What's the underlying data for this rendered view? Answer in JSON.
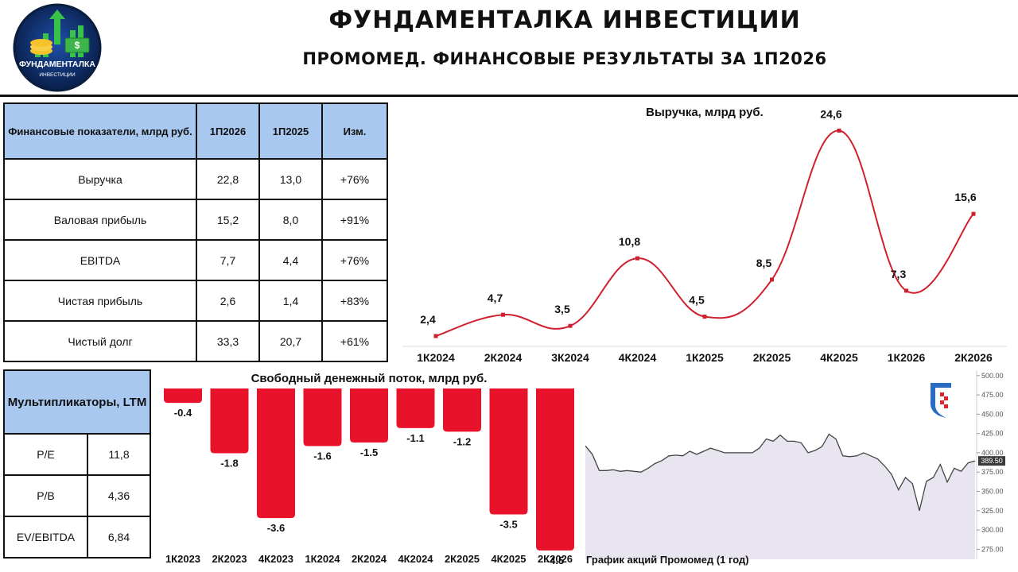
{
  "header": {
    "title": "ФУНДАМЕНТАЛКА ИНВЕСТИЦИИ",
    "subtitle": "ПРОМОМЕД. ФИНАНСОВЫЕ РЕЗУЛЬТАТЫ ЗА 1П2026",
    "logo_line1": "ФУНДАМЕНТАЛКА",
    "logo_line2": "ИНВЕСТИЦИИ"
  },
  "fin_table": {
    "headers": [
      "Финансовые показатели, млрд руб.",
      "1П2026",
      "1П2025",
      "Изм."
    ],
    "rows": [
      [
        "Выручка",
        "22,8",
        "13,0",
        "+76%"
      ],
      [
        "Валовая прибыль",
        "15,2",
        "8,0",
        "+91%"
      ],
      [
        "EBITDA",
        "7,7",
        "4,4",
        "+76%"
      ],
      [
        "Чистая прибыль",
        "2,6",
        "1,4",
        "+83%"
      ],
      [
        "Чистый долг",
        "33,3",
        "20,7",
        "+61%"
      ]
    ]
  },
  "mult_table": {
    "header": "Мультипликаторы, LTM",
    "rows": [
      [
        "P/E",
        "11,8"
      ],
      [
        "P/B",
        "4,36"
      ],
      [
        "EV/EBITDA",
        "6,84"
      ]
    ]
  },
  "chart_data": [
    {
      "type": "line",
      "title": "Выручка, млрд руб.",
      "categories": [
        "1К2024",
        "2К2024",
        "3К2024",
        "4К2024",
        "1К2025",
        "2К2025",
        "4К2025",
        "1К2026",
        "2К2026"
      ],
      "values": [
        2.4,
        4.7,
        3.5,
        10.8,
        4.5,
        8.5,
        24.6,
        7.3,
        15.6
      ],
      "labels": [
        "2,4",
        "4,7",
        "3,5",
        "10,8",
        "4,5",
        "8,5",
        "24,6",
        "7,3",
        "15,6"
      ],
      "color": "#d0202e",
      "grid": false
    },
    {
      "type": "bar",
      "title": "Свободный денежный поток, млрд руб.",
      "categories": [
        "1К2023",
        "2К2023",
        "4К2023",
        "1К2024",
        "2К2024",
        "4К2024",
        "2К2025",
        "4К2025",
        "2К2026"
      ],
      "values": [
        -0.4,
        -1.8,
        -3.6,
        -1.6,
        -1.5,
        -1.1,
        -1.2,
        -3.5,
        -4.5
      ],
      "labels": [
        "-0.4",
        "-1.8",
        "-3.6",
        "-1.6",
        "-1.5",
        "-1.1",
        "-1.2",
        "-3.5",
        "-4.5"
      ],
      "color": "#e8132b",
      "grid": false
    },
    {
      "type": "area",
      "title": "График акций Промомед (1 год)",
      "yticks": [
        500,
        475,
        450,
        425,
        400,
        375,
        350,
        325,
        300,
        275
      ],
      "ytick_labels": [
        "500.00",
        "475.00",
        "450.00",
        "425.00",
        "400.00",
        "375.00",
        "350.00",
        "325.00",
        "300.00",
        "275.00"
      ],
      "ylim": [
        262,
        507
      ],
      "values": [
        409,
        398,
        377,
        377,
        378,
        376,
        377,
        376,
        375,
        380,
        386,
        390,
        396,
        397,
        396,
        402,
        398,
        402,
        406,
        403,
        400,
        400,
        400,
        400,
        400,
        406,
        418,
        415,
        423,
        415,
        415,
        413,
        400,
        403,
        408,
        424,
        418,
        396,
        395,
        396,
        400,
        396,
        392,
        383,
        372,
        352,
        368,
        360,
        325,
        363,
        368,
        385,
        362,
        380,
        376,
        387,
        389.5
      ],
      "last_value": "389.50",
      "color": "#444444",
      "fill": "#e9e5f0",
      "grid": false
    }
  ]
}
